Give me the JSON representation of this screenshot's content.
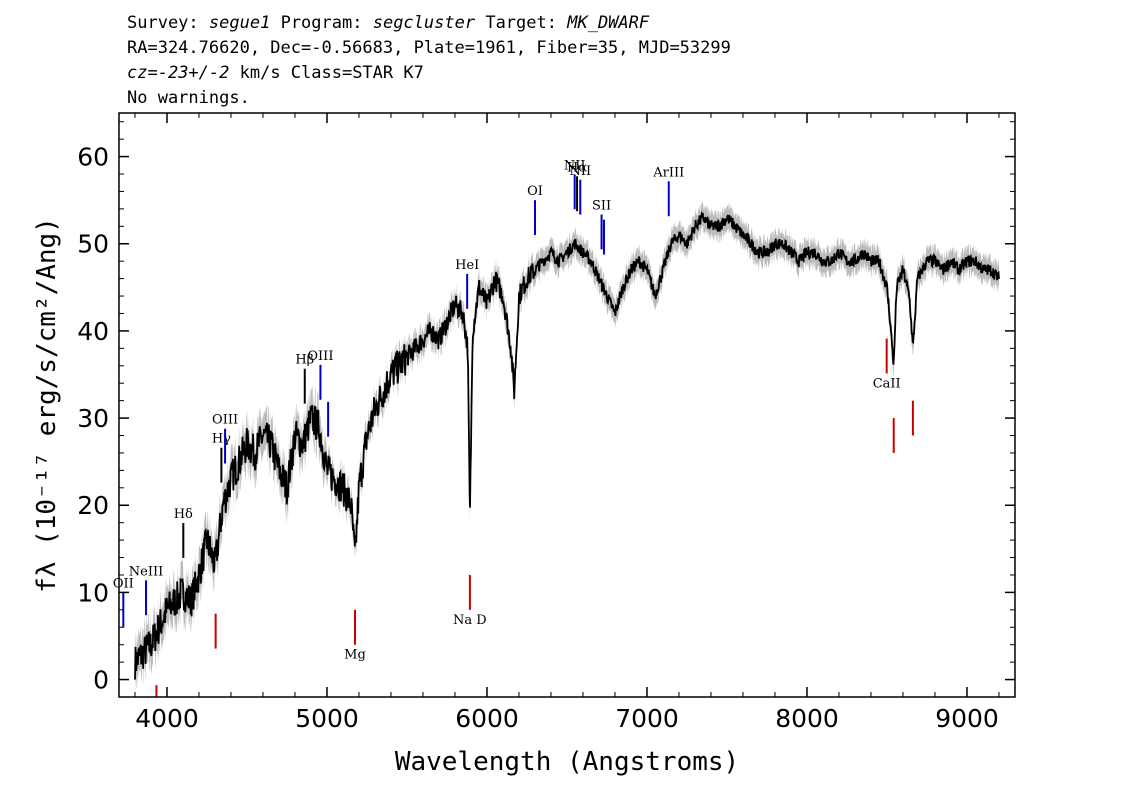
{
  "header": {
    "survey_key": "Survey:",
    "survey": "segue1",
    "program_key": "Program:",
    "program": "segcluster",
    "target_key": "Target:",
    "target": "MK_DWARF",
    "line2": "RA=324.76620, Dec=-0.56683, Plate=1961, Fiber=35, MJD=53299",
    "cz_key": "cz=",
    "cz_value": "-23+/-2",
    "cz_rest": " km/s Class=STAR K7",
    "line4": "No warnings."
  },
  "chart_data": {
    "type": "line",
    "xlabel": "Wavelength (Angstroms)",
    "ylabel": "fλ (10⁻¹⁷ erg/s/cm²/Ang)",
    "xlim": [
      3700,
      9300
    ],
    "ylim": [
      -2,
      65
    ],
    "xticks": [
      4000,
      5000,
      6000,
      7000,
      8000,
      9000
    ],
    "yticks": [
      0,
      10,
      20,
      30,
      40,
      50,
      60
    ],
    "colors": {
      "flux": "#000000",
      "error_band": "#bbbbbb",
      "emission": "#0000cc",
      "absorption": "#cc0000"
    },
    "series": [
      {
        "x": [
          3800,
          3850,
          3900,
          3950,
          4000,
          4050,
          4100,
          4150,
          4200,
          4250,
          4300,
          4350,
          4400,
          4450,
          4500,
          4550,
          4600,
          4650,
          4700,
          4750,
          4800,
          4850,
          4900,
          4950,
          5000,
          5050,
          5100,
          5150,
          5175,
          5200,
          5250,
          5300,
          5350,
          5400,
          5450,
          5500,
          5550,
          5600,
          5650,
          5700,
          5750,
          5800,
          5850,
          5880,
          5893,
          5910,
          5950,
          6000,
          6050,
          6100,
          6150,
          6170,
          6200,
          6250,
          6300,
          6350,
          6400,
          6450,
          6500,
          6550,
          6600,
          6650,
          6700,
          6750,
          6800,
          6850,
          6900,
          6950,
          7000,
          7050,
          7100,
          7150,
          7200,
          7250,
          7300,
          7350,
          7400,
          7450,
          7500,
          7550,
          7600,
          7650,
          7700,
          7750,
          7800,
          7850,
          7900,
          7950,
          8000,
          8050,
          8100,
          8150,
          8200,
          8250,
          8300,
          8350,
          8400,
          8450,
          8500,
          8520,
          8542,
          8560,
          8600,
          8640,
          8662,
          8690,
          8750,
          8800,
          8850,
          8900,
          8950,
          9000,
          9050,
          9100,
          9150,
          9200
        ],
        "y": [
          2,
          3,
          4,
          6,
          8,
          9,
          10,
          9,
          12,
          16,
          13,
          20,
          23,
          25,
          27,
          26,
          28,
          27,
          24,
          22,
          28,
          27,
          30,
          29,
          24,
          23,
          22,
          20,
          14,
          22,
          28,
          31,
          33,
          35,
          36,
          37,
          38,
          39,
          40,
          39,
          41,
          43,
          42,
          38,
          18,
          40,
          45,
          43,
          46,
          44,
          38,
          33,
          44,
          46,
          47,
          48,
          49,
          48,
          49,
          50,
          49,
          48,
          46,
          44,
          42,
          45,
          47,
          48,
          47,
          44,
          47,
          50,
          51,
          50,
          52,
          53,
          52,
          52,
          53,
          52,
          51,
          50,
          49,
          49,
          50,
          50,
          49,
          48,
          49,
          49,
          48,
          48,
          49,
          48,
          48,
          49,
          48,
          48,
          45,
          41,
          36,
          45,
          47,
          44,
          38,
          46,
          48,
          48,
          47,
          48,
          47,
          48,
          48,
          47,
          47,
          46
        ]
      }
    ],
    "lines": [
      {
        "label": "OII",
        "wave": 3727,
        "kind": "emission"
      },
      {
        "label": "NeIII",
        "wave": 3869,
        "kind": "emission"
      },
      {
        "label": "Hδ",
        "wave": 4102,
        "kind": "balmer"
      },
      {
        "label": "Hγ",
        "wave": 4340,
        "kind": "balmer"
      },
      {
        "label": "OIII",
        "wave": 4363,
        "kind": "emission"
      },
      {
        "label": "Hβ",
        "wave": 4861,
        "kind": "balmer"
      },
      {
        "label": "OIII",
        "wave": 4959,
        "kind": "emission"
      },
      {
        "label": "",
        "wave": 5007,
        "kind": "emission"
      },
      {
        "label": "HeI",
        "wave": 5876,
        "kind": "emission"
      },
      {
        "label": "OI",
        "wave": 6300,
        "kind": "emission"
      },
      {
        "label": "NII",
        "wave": 6548,
        "kind": "emission"
      },
      {
        "label": "Hα",
        "wave": 6563,
        "kind": "balmer"
      },
      {
        "label": "NII",
        "wave": 6583,
        "kind": "emission"
      },
      {
        "label": "SII",
        "wave": 6716,
        "kind": "emission"
      },
      {
        "label": "",
        "wave": 6731,
        "kind": "emission"
      },
      {
        "label": "ArIII",
        "wave": 7136,
        "kind": "emission"
      },
      {
        "label": "",
        "wave": 3934,
        "kind": "absorption"
      },
      {
        "label": "",
        "wave": 4304,
        "kind": "absorption"
      },
      {
        "label": "Mg",
        "wave": 5175,
        "kind": "absorption"
      },
      {
        "label": "Na D",
        "wave": 5893,
        "kind": "absorption"
      },
      {
        "label": "CaII",
        "wave": 8498,
        "kind": "absorption"
      },
      {
        "label": "",
        "wave": 8542,
        "kind": "absorption"
      },
      {
        "label": "",
        "wave": 8662,
        "kind": "absorption"
      }
    ]
  }
}
